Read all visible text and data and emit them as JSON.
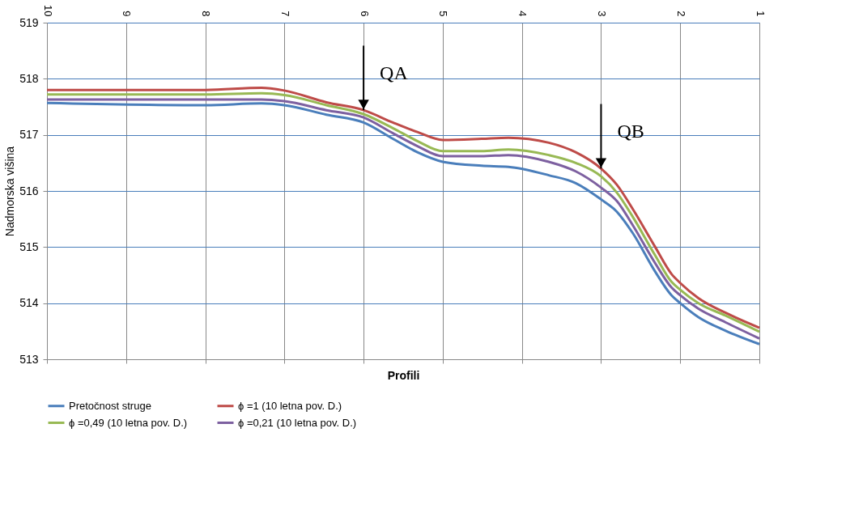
{
  "chart_data": {
    "type": "line",
    "xlabel": "Profili",
    "ylabel": "Nadmorska višina",
    "x": [
      10,
      8,
      7.29,
      7,
      6.47,
      6,
      5.63,
      5.32,
      5,
      4.51,
      4.17,
      3.66,
      3.32,
      3,
      2.8,
      2.6,
      2.32,
      2.11,
      2,
      1.77,
      1.43,
      1
    ],
    "series": [
      {
        "name": "Pretočnost struge",
        "color": "#4a7ebb",
        "values": [
          517.57,
          517.53,
          517.56,
          517.53,
          517.36,
          517.22,
          516.93,
          516.69,
          516.52,
          516.45,
          516.43,
          516.28,
          516.14,
          515.85,
          515.63,
          515.25,
          514.57,
          514.14,
          514.0,
          513.75,
          513.51,
          513.27
        ]
      },
      {
        "name": "ϕ =1 (10 letna pov. D.)",
        "color": "#be4b48",
        "values": [
          517.8,
          517.8,
          517.84,
          517.79,
          517.58,
          517.44,
          517.22,
          517.05,
          516.91,
          516.93,
          516.95,
          516.86,
          516.69,
          516.4,
          516.11,
          515.68,
          515.01,
          514.52,
          514.36,
          514.09,
          513.83,
          513.56
        ]
      },
      {
        "name": "ϕ =0,49 (10 letna pov. D.)",
        "color": "#98b954",
        "values": [
          517.72,
          517.72,
          517.74,
          517.71,
          517.53,
          517.37,
          517.12,
          516.89,
          516.71,
          516.71,
          516.74,
          516.64,
          516.5,
          516.26,
          515.97,
          515.54,
          514.86,
          514.38,
          514.24,
          514.0,
          513.78,
          513.49
        ]
      },
      {
        "name": "ϕ =0,21 (10 letna pov. D.)",
        "color": "#7d60a0",
        "values": [
          517.63,
          517.63,
          517.63,
          517.6,
          517.44,
          517.31,
          517.03,
          516.8,
          516.62,
          516.62,
          516.64,
          516.52,
          516.35,
          516.06,
          515.82,
          515.39,
          514.72,
          514.28,
          514.14,
          513.9,
          513.66,
          513.37
        ]
      }
    ],
    "xlim": [
      10,
      1
    ],
    "xticks": [
      10,
      9,
      8,
      7,
      6,
      5,
      4,
      3,
      2,
      1
    ],
    "ylim": [
      513,
      519
    ],
    "yticks": [
      513,
      514,
      515,
      516,
      517,
      518,
      519
    ],
    "grid": true,
    "legend": "bottom",
    "line_style": "solid",
    "marker": "none",
    "annotations": [
      {
        "text": "QA",
        "x": 6,
        "y": 517.44
      },
      {
        "text": "QB",
        "x": 3,
        "y": 516.4
      }
    ]
  }
}
